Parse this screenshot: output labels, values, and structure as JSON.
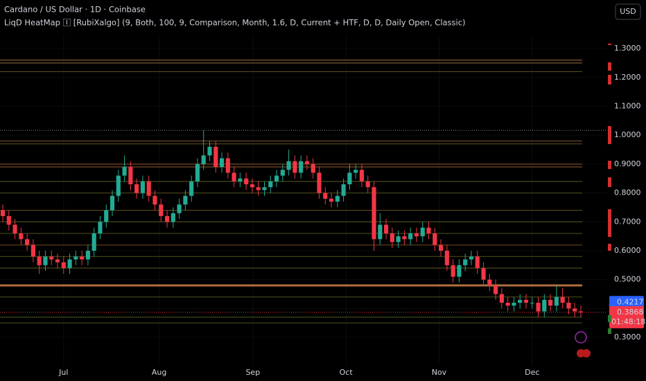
{
  "header": {
    "symbol": "Cardano / US Dollar · 1D · Coinbase",
    "indicator": "LiqD HeatMap 🄸 [RubiXalgo] (9, Both, 100, 9, Comparison, Month, 1.6, D, Current + HTF, D, D, Daily Open, Classic)",
    "currency": "USD"
  },
  "chart_data": {
    "type": "candlestick",
    "up_color": "#22ab94",
    "down_color": "#f23645",
    "ylim": [
      0.221,
      1.468
    ],
    "yticks": [
      {
        "value": 1.3,
        "label": "1.3000"
      },
      {
        "value": 1.2,
        "label": "1.2000"
      },
      {
        "value": 1.1,
        "label": "1.1000"
      },
      {
        "value": 1.0,
        "label": "1.0000"
      },
      {
        "value": 0.9,
        "label": "0.9000"
      },
      {
        "value": 0.8,
        "label": "0.8000"
      },
      {
        "value": 0.7,
        "label": "0.7000"
      },
      {
        "value": 0.6,
        "label": "0.6000"
      },
      {
        "value": 0.5,
        "label": "0.5000"
      },
      {
        "value": 0.4,
        "label": "0.4000"
      },
      {
        "value": 0.3,
        "label": "0.3000"
      }
    ],
    "xticks": [
      {
        "value": 10,
        "label": "Jul"
      },
      {
        "value": 25.7,
        "label": "Aug"
      },
      {
        "value": 41.1,
        "label": "Sep"
      },
      {
        "value": 56.4,
        "label": "Oct"
      },
      {
        "value": 71.7,
        "label": "Nov"
      },
      {
        "value": 87,
        "label": "Dec"
      }
    ],
    "levels": [
      {
        "price": 1.26,
        "color": "#8a5a2a"
      },
      {
        "price": 1.25,
        "color": "#7a5a2a"
      },
      {
        "price": 1.22,
        "color": "#5a4a22"
      },
      {
        "price": 0.98,
        "color": "#6a4a22"
      },
      {
        "price": 0.97,
        "color": "#5a4a22"
      },
      {
        "price": 0.9,
        "color": "#7a4a22"
      },
      {
        "price": 0.89,
        "color": "#7a4a22"
      },
      {
        "price": 0.84,
        "color": "#4a4a1a"
      },
      {
        "price": 0.8,
        "color": "#4a4a1a"
      },
      {
        "price": 0.74,
        "color": "#5a4a22"
      },
      {
        "price": 0.7,
        "color": "#4a4a1a"
      },
      {
        "price": 0.66,
        "color": "#4a4a1a"
      },
      {
        "price": 0.62,
        "color": "#5a3a1a"
      },
      {
        "price": 0.58,
        "color": "#4a4a1a"
      },
      {
        "price": 0.54,
        "color": "#4a4a1a"
      },
      {
        "price": 0.48,
        "color": "#b07040"
      },
      {
        "price": 0.44,
        "color": "#4a4a1a"
      },
      {
        "price": 0.37,
        "color": "#3a4a1a"
      },
      {
        "price": 0.35,
        "color": "#3a4a1a"
      }
    ],
    "peak_line": 1.017,
    "candles": [
      [
        0.74,
        0.76,
        0.7,
        0.72
      ],
      [
        0.72,
        0.74,
        0.67,
        0.69
      ],
      [
        0.69,
        0.71,
        0.64,
        0.66
      ],
      [
        0.66,
        0.68,
        0.62,
        0.64
      ],
      [
        0.64,
        0.66,
        0.6,
        0.62
      ],
      [
        0.62,
        0.64,
        0.56,
        0.58
      ],
      [
        0.58,
        0.6,
        0.52,
        0.55
      ],
      [
        0.55,
        0.6,
        0.53,
        0.58
      ],
      [
        0.58,
        0.6,
        0.55,
        0.57
      ],
      [
        0.57,
        0.59,
        0.54,
        0.56
      ],
      [
        0.56,
        0.58,
        0.52,
        0.54
      ],
      [
        0.54,
        0.59,
        0.52,
        0.57
      ],
      [
        0.57,
        0.6,
        0.55,
        0.58
      ],
      [
        0.58,
        0.6,
        0.55,
        0.57
      ],
      [
        0.57,
        0.62,
        0.55,
        0.6
      ],
      [
        0.6,
        0.68,
        0.58,
        0.66
      ],
      [
        0.66,
        0.72,
        0.64,
        0.7
      ],
      [
        0.7,
        0.76,
        0.68,
        0.74
      ],
      [
        0.74,
        0.81,
        0.72,
        0.79
      ],
      [
        0.79,
        0.88,
        0.77,
        0.86
      ],
      [
        0.86,
        0.93,
        0.84,
        0.89
      ],
      [
        0.89,
        0.91,
        0.81,
        0.83
      ],
      [
        0.83,
        0.85,
        0.78,
        0.8
      ],
      [
        0.8,
        0.86,
        0.78,
        0.84
      ],
      [
        0.84,
        0.86,
        0.77,
        0.79
      ],
      [
        0.79,
        0.81,
        0.74,
        0.76
      ],
      [
        0.76,
        0.78,
        0.7,
        0.72
      ],
      [
        0.72,
        0.74,
        0.68,
        0.7
      ],
      [
        0.7,
        0.75,
        0.68,
        0.73
      ],
      [
        0.73,
        0.78,
        0.71,
        0.76
      ],
      [
        0.76,
        0.81,
        0.74,
        0.79
      ],
      [
        0.79,
        0.86,
        0.77,
        0.84
      ],
      [
        0.84,
        0.92,
        0.82,
        0.9
      ],
      [
        0.9,
        1.017,
        0.88,
        0.93
      ],
      [
        0.93,
        0.98,
        0.91,
        0.96
      ],
      [
        0.96,
        0.98,
        0.87,
        0.89
      ],
      [
        0.89,
        0.94,
        0.87,
        0.92
      ],
      [
        0.92,
        0.94,
        0.85,
        0.87
      ],
      [
        0.87,
        0.89,
        0.82,
        0.84
      ],
      [
        0.84,
        0.87,
        0.82,
        0.85
      ],
      [
        0.85,
        0.87,
        0.81,
        0.83
      ],
      [
        0.83,
        0.85,
        0.8,
        0.82
      ],
      [
        0.82,
        0.84,
        0.79,
        0.81
      ],
      [
        0.81,
        0.84,
        0.79,
        0.82
      ],
      [
        0.82,
        0.86,
        0.8,
        0.84
      ],
      [
        0.84,
        0.88,
        0.82,
        0.86
      ],
      [
        0.86,
        0.9,
        0.84,
        0.88
      ],
      [
        0.88,
        0.95,
        0.86,
        0.91
      ],
      [
        0.91,
        0.93,
        0.85,
        0.87
      ],
      [
        0.87,
        0.93,
        0.85,
        0.91
      ],
      [
        0.91,
        0.93,
        0.88,
        0.9
      ],
      [
        0.9,
        0.92,
        0.85,
        0.87
      ],
      [
        0.87,
        0.89,
        0.78,
        0.8
      ],
      [
        0.8,
        0.82,
        0.76,
        0.78
      ],
      [
        0.78,
        0.8,
        0.75,
        0.77
      ],
      [
        0.77,
        0.81,
        0.75,
        0.79
      ],
      [
        0.79,
        0.85,
        0.77,
        0.83
      ],
      [
        0.83,
        0.9,
        0.81,
        0.87
      ],
      [
        0.87,
        0.9,
        0.85,
        0.88
      ],
      [
        0.88,
        0.9,
        0.82,
        0.84
      ],
      [
        0.84,
        0.86,
        0.8,
        0.82
      ],
      [
        0.82,
        0.84,
        0.6,
        0.64
      ],
      [
        0.64,
        0.73,
        0.62,
        0.69
      ],
      [
        0.69,
        0.71,
        0.64,
        0.66
      ],
      [
        0.66,
        0.68,
        0.61,
        0.63
      ],
      [
        0.63,
        0.67,
        0.61,
        0.65
      ],
      [
        0.65,
        0.67,
        0.62,
        0.64
      ],
      [
        0.64,
        0.68,
        0.62,
        0.66
      ],
      [
        0.66,
        0.68,
        0.63,
        0.65
      ],
      [
        0.65,
        0.7,
        0.63,
        0.68
      ],
      [
        0.68,
        0.7,
        0.64,
        0.66
      ],
      [
        0.66,
        0.68,
        0.6,
        0.62
      ],
      [
        0.62,
        0.64,
        0.58,
        0.6
      ],
      [
        0.6,
        0.62,
        0.53,
        0.55
      ],
      [
        0.55,
        0.57,
        0.49,
        0.51
      ],
      [
        0.51,
        0.57,
        0.49,
        0.55
      ],
      [
        0.55,
        0.59,
        0.53,
        0.57
      ],
      [
        0.57,
        0.6,
        0.55,
        0.58
      ],
      [
        0.58,
        0.6,
        0.52,
        0.54
      ],
      [
        0.54,
        0.56,
        0.48,
        0.5
      ],
      [
        0.5,
        0.52,
        0.46,
        0.48
      ],
      [
        0.48,
        0.5,
        0.43,
        0.45
      ],
      [
        0.45,
        0.47,
        0.4,
        0.42
      ],
      [
        0.42,
        0.44,
        0.39,
        0.41
      ],
      [
        0.41,
        0.44,
        0.39,
        0.42
      ],
      [
        0.42,
        0.45,
        0.4,
        0.43
      ],
      [
        0.43,
        0.45,
        0.4,
        0.42
      ],
      [
        0.42,
        0.44,
        0.4,
        0.42
      ],
      [
        0.42,
        0.44,
        0.37,
        0.39
      ],
      [
        0.39,
        0.45,
        0.37,
        0.43
      ],
      [
        0.43,
        0.45,
        0.39,
        0.41
      ],
      [
        0.41,
        0.48,
        0.39,
        0.44
      ],
      [
        0.44,
        0.47,
        0.4,
        0.42
      ],
      [
        0.42,
        0.44,
        0.38,
        0.4
      ],
      [
        0.4,
        0.42,
        0.37,
        0.39
      ],
      [
        0.39,
        0.41,
        0.37,
        0.3868
      ]
    ],
    "marker_price": 0.4217,
    "last_price": 0.3868,
    "countdown": "01:48:18"
  }
}
